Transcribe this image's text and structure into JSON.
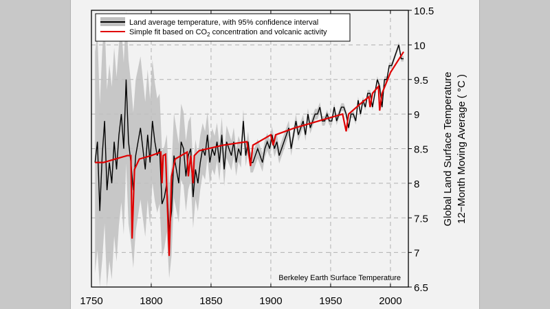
{
  "chart_data": {
    "type": "line",
    "title": "",
    "xlabel": "",
    "ylabel": [
      "Global Land Surface Temperature",
      "12−Month Moving Average ( °C )"
    ],
    "xlim": [
      1750,
      2015
    ],
    "ylim": [
      6.5,
      10.5
    ],
    "xticks": [
      "1750",
      "1800",
      "1850",
      "1900",
      "1950",
      "2000"
    ],
    "yticks": [
      "6.5",
      "7",
      "7.5",
      "8",
      "8.5",
      "9",
      "9.5",
      "10",
      "10.5"
    ],
    "grid": true,
    "annotation": "Berkeley Earth Surface Temperature",
    "legend": {
      "placement": "top-left",
      "entries": [
        {
          "label": "Land average temperature, with 95% confidence interval",
          "color": "#000000",
          "band_color": "#c0c0c0"
        },
        {
          "label_pre": "Simple fit based on CO",
          "label_sub": "2",
          "label_post": " concentration and volcanic activity",
          "color": "#e00000"
        }
      ]
    },
    "series": [
      {
        "name": "Land average temperature",
        "color": "#000000",
        "x": [
          1753,
          1755,
          1757,
          1759,
          1761,
          1763,
          1765,
          1767,
          1769,
          1771,
          1773,
          1775,
          1777,
          1779,
          1781,
          1783,
          1785,
          1787,
          1789,
          1791,
          1793,
          1795,
          1797,
          1799,
          1801,
          1803,
          1805,
          1807,
          1809,
          1811,
          1813,
          1815,
          1817,
          1819,
          1821,
          1823,
          1825,
          1827,
          1829,
          1831,
          1833,
          1835,
          1837,
          1839,
          1841,
          1843,
          1845,
          1847,
          1849,
          1851,
          1853,
          1855,
          1857,
          1859,
          1861,
          1863,
          1865,
          1867,
          1869,
          1871,
          1873,
          1875,
          1877,
          1879,
          1881,
          1883,
          1885,
          1887,
          1889,
          1891,
          1893,
          1895,
          1897,
          1899,
          1901,
          1903,
          1905,
          1907,
          1909,
          1911,
          1913,
          1915,
          1917,
          1919,
          1921,
          1923,
          1925,
          1927,
          1929,
          1931,
          1933,
          1935,
          1937,
          1939,
          1941,
          1943,
          1945,
          1947,
          1949,
          1951,
          1953,
          1955,
          1957,
          1959,
          1961,
          1963,
          1965,
          1967,
          1969,
          1971,
          1973,
          1975,
          1977,
          1979,
          1981,
          1983,
          1985,
          1987,
          1989,
          1991,
          1993,
          1995,
          1997,
          1999,
          2001,
          2003,
          2005,
          2007,
          2009,
          2011
        ],
        "y": [
          8.3,
          8.6,
          7.6,
          8.4,
          8.9,
          7.9,
          8.3,
          8.0,
          8.6,
          8.2,
          8.7,
          9.0,
          8.5,
          9.5,
          8.6,
          8.3,
          7.9,
          8.4,
          8.6,
          8.8,
          8.5,
          8.2,
          8.7,
          8.3,
          8.9,
          8.6,
          8.4,
          8.5,
          7.7,
          7.8,
          8.0,
          7.3,
          7.6,
          8.4,
          8.2,
          8.0,
          8.6,
          8.5,
          8.1,
          8.4,
          8.5,
          7.8,
          8.2,
          8.0,
          8.3,
          8.5,
          8.4,
          8.7,
          8.3,
          8.5,
          8.4,
          8.6,
          8.3,
          8.7,
          8.2,
          8.6,
          8.5,
          8.4,
          8.6,
          8.3,
          8.5,
          8.4,
          8.9,
          8.4,
          8.6,
          8.3,
          8.3,
          8.4,
          8.5,
          8.4,
          8.3,
          8.5,
          8.6,
          8.5,
          8.7,
          8.5,
          8.6,
          8.4,
          8.5,
          8.6,
          8.7,
          8.8,
          8.5,
          8.7,
          8.9,
          8.7,
          8.8,
          8.9,
          8.7,
          9.0,
          8.8,
          8.9,
          9.0,
          9.0,
          9.1,
          8.9,
          8.9,
          9.0,
          8.9,
          8.9,
          9.1,
          8.9,
          9.0,
          9.1,
          9.1,
          9.0,
          8.8,
          9.0,
          9.0,
          8.9,
          9.2,
          9.0,
          9.2,
          9.1,
          9.3,
          9.3,
          9.1,
          9.3,
          9.5,
          9.4,
          9.1,
          9.5,
          9.5,
          9.7,
          9.7,
          9.8,
          9.9,
          10.0,
          9.8,
          9.8
        ]
      },
      {
        "name": "95% confidence interval (half-width)",
        "color": "#c0c0c0",
        "x": [
          1753,
          1780,
          1800,
          1820,
          1850,
          1880,
          1950,
          2011
        ],
        "y": [
          1.6,
          1.2,
          0.9,
          0.6,
          0.3,
          0.15,
          0.06,
          0.04
        ]
      },
      {
        "name": "Simple fit based on CO2 concentration and volcanic activity",
        "color": "#e00000",
        "x": [
          1753,
          1760,
          1770,
          1780,
          1783,
          1784,
          1786,
          1790,
          1800,
          1808,
          1809,
          1810,
          1812,
          1815,
          1817,
          1820,
          1830,
          1831,
          1833,
          1835,
          1836,
          1840,
          1860,
          1880,
          1883,
          1885,
          1890,
          1900,
          1902,
          1904,
          1912,
          1920,
          1940,
          1960,
          1963,
          1965,
          1975,
          1982,
          1983,
          1985,
          1990,
          1991,
          1993,
          2000,
          2011
        ],
        "y": [
          8.3,
          8.3,
          8.35,
          8.4,
          8.4,
          7.2,
          8.2,
          8.35,
          8.4,
          8.45,
          8.0,
          8.4,
          8.42,
          6.95,
          8.1,
          8.35,
          8.45,
          8.1,
          8.4,
          8.0,
          8.4,
          8.47,
          8.55,
          8.6,
          8.25,
          8.55,
          8.6,
          8.7,
          8.55,
          8.7,
          8.75,
          8.8,
          8.9,
          9.0,
          8.75,
          9.0,
          9.15,
          9.25,
          9.1,
          9.3,
          9.4,
          9.05,
          9.3,
          9.6,
          9.9
        ]
      }
    ]
  }
}
